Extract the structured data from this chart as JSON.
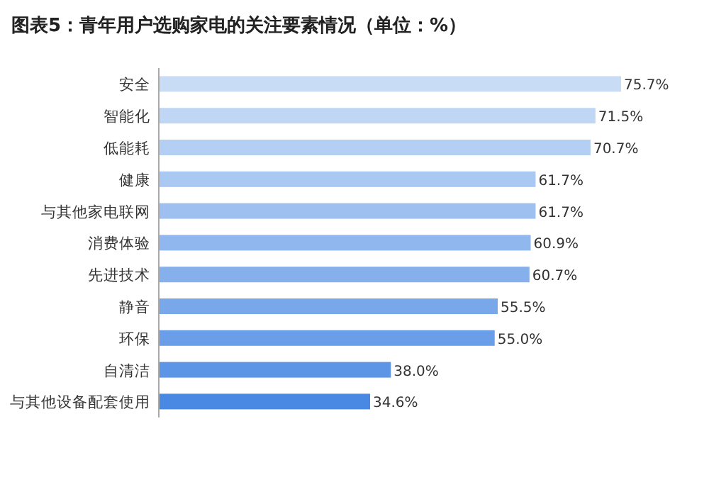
{
  "chart_data": {
    "type": "bar",
    "orientation": "horizontal",
    "title": "图表5：青年用户选购家电的关注要素情况（单位：%）",
    "categories": [
      "安全",
      "智能化",
      "低能耗",
      "健康",
      "与其他家电联网",
      "消费体验",
      "先进技术",
      "静音",
      "环保",
      "自清洁",
      "与其他设备配套使用"
    ],
    "values": [
      75.7,
      71.5,
      70.7,
      61.7,
      61.7,
      60.9,
      60.7,
      55.5,
      55.0,
      38.0,
      34.6
    ],
    "value_labels": [
      "75.7%",
      "71.5%",
      "70.7%",
      "61.7%",
      "61.7%",
      "60.9%",
      "60.7%",
      "55.5%",
      "55.0%",
      "38.0%",
      "34.6%"
    ],
    "colors": [
      "#c9dcf6",
      "#bfd6f5",
      "#b4cff4",
      "#a9c8f2",
      "#9dc0f0",
      "#91b8ee",
      "#85b0ec",
      "#78a7ea",
      "#6b9ee8",
      "#5c94e6",
      "#4a89e3"
    ]
  }
}
